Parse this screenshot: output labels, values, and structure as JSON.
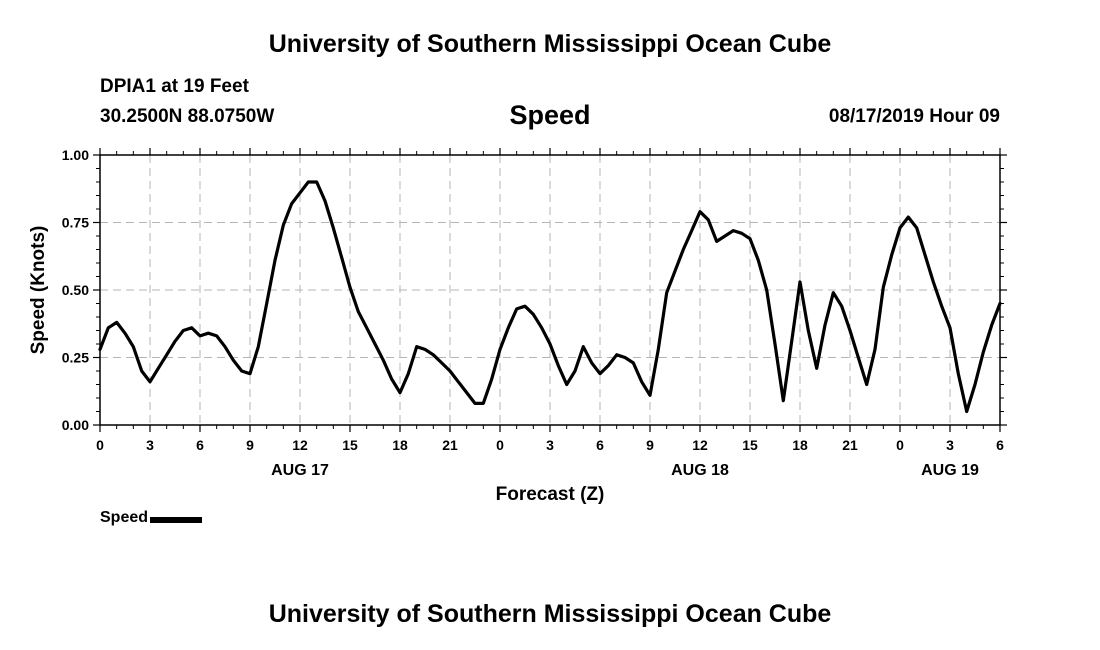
{
  "header": {
    "title": "University of Southern Mississippi Ocean Cube",
    "station": "DPIA1 at 19 Feet",
    "coordinates": "30.2500N 88.0750W",
    "datetime": "08/17/2019 Hour 09"
  },
  "footer": {
    "title": "University of Southern Mississippi Ocean Cube"
  },
  "legend": {
    "label": "Speed",
    "color": "#000000"
  },
  "chart_data": {
    "type": "line",
    "title": "Speed",
    "xlabel": "Forecast (Z)",
    "ylabel": "Speed (Knots)",
    "xlim": [
      0,
      54
    ],
    "ylim": [
      0,
      1
    ],
    "grid": true,
    "legend_position": "bottom-left",
    "x_ticks": [
      0,
      3,
      6,
      9,
      12,
      15,
      18,
      21,
      24,
      27,
      30,
      33,
      36,
      39,
      42,
      45,
      48,
      51,
      54
    ],
    "x_tick_labels": [
      "0",
      "3",
      "6",
      "9",
      "12",
      "15",
      "18",
      "21",
      "0",
      "3",
      "6",
      "9",
      "12",
      "15",
      "18",
      "21",
      "0",
      "3",
      "6"
    ],
    "y_ticks": [
      0,
      0.25,
      0.5,
      0.75,
      1.0
    ],
    "y_tick_labels": [
      "0.00",
      "0.25",
      "0.50",
      "0.75",
      "1.00"
    ],
    "day_labels": [
      {
        "x": 12,
        "label": "AUG 17"
      },
      {
        "x": 36,
        "label": "AUG 18"
      },
      {
        "x": 51,
        "label": "AUG 19"
      }
    ],
    "series": [
      {
        "name": "Speed",
        "color": "#000000",
        "x": [
          0,
          0.5,
          1,
          1.5,
          2,
          2.5,
          3,
          3.5,
          4,
          4.5,
          5,
          5.5,
          6,
          6.5,
          7,
          7.5,
          8,
          8.5,
          9,
          9.5,
          10,
          10.5,
          11,
          11.5,
          12,
          12.5,
          13,
          13.5,
          14,
          14.5,
          15,
          15.5,
          16,
          16.5,
          17,
          17.5,
          18,
          18.5,
          19,
          19.5,
          20,
          20.5,
          21,
          21.5,
          22,
          22.5,
          23,
          23.5,
          24,
          24.5,
          25,
          25.5,
          26,
          26.5,
          27,
          27.5,
          28,
          28.5,
          29,
          29.5,
          30,
          30.5,
          31,
          31.5,
          32,
          32.5,
          33,
          33.5,
          34,
          34.5,
          35,
          35.5,
          36,
          36.5,
          37,
          37.5,
          38,
          38.5,
          39,
          39.5,
          40,
          40.5,
          41,
          41.5,
          42,
          42.5,
          43,
          43.5,
          44,
          44.5,
          45,
          45.5,
          46,
          46.5,
          47,
          47.5,
          48,
          48.5,
          49,
          49.5,
          50,
          50.5,
          51,
          51.5,
          52,
          52.5,
          53,
          53.5,
          54
        ],
        "y": [
          0.28,
          0.36,
          0.38,
          0.34,
          0.29,
          0.2,
          0.16,
          0.21,
          0.26,
          0.31,
          0.35,
          0.36,
          0.33,
          0.34,
          0.33,
          0.29,
          0.24,
          0.2,
          0.19,
          0.29,
          0.45,
          0.61,
          0.74,
          0.82,
          0.86,
          0.9,
          0.9,
          0.83,
          0.73,
          0.62,
          0.51,
          0.42,
          0.36,
          0.3,
          0.24,
          0.17,
          0.12,
          0.19,
          0.29,
          0.28,
          0.26,
          0.23,
          0.2,
          0.16,
          0.12,
          0.08,
          0.08,
          0.17,
          0.28,
          0.36,
          0.43,
          0.44,
          0.41,
          0.36,
          0.3,
          0.22,
          0.15,
          0.2,
          0.29,
          0.23,
          0.19,
          0.22,
          0.26,
          0.25,
          0.23,
          0.16,
          0.11,
          0.28,
          0.49,
          0.57,
          0.65,
          0.72,
          0.79,
          0.76,
          0.68,
          0.7,
          0.72,
          0.71,
          0.69,
          0.61,
          0.5,
          0.3,
          0.09,
          0.31,
          0.53,
          0.35,
          0.21,
          0.37,
          0.49,
          0.44,
          0.35,
          0.25,
          0.15,
          0.28,
          0.51,
          0.63,
          0.73,
          0.77,
          0.73,
          0.63,
          0.53,
          0.44,
          0.36,
          0.19,
          0.05,
          0.15,
          0.27,
          0.37,
          0.45
        ]
      }
    ]
  }
}
